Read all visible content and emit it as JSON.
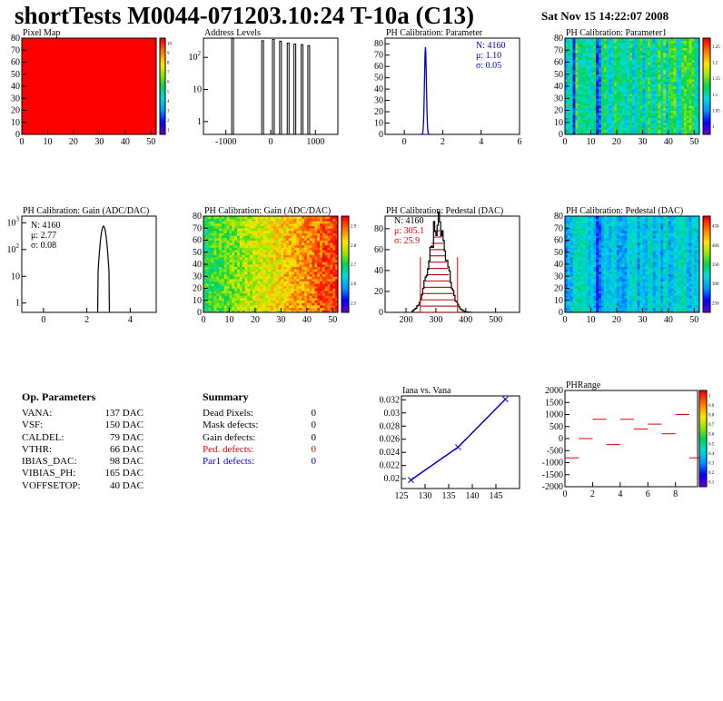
{
  "title": "shortTests M0044-071203.10:24 T-10a (C13)",
  "date": "Sat Nov 15 14:22:07 2008",
  "colors": {
    "hist": "#000000",
    "blue": "#0000cc",
    "red": "#dd0000",
    "pedfill": "#aa0000"
  },
  "chart_data": [
    {
      "type": "heatmap",
      "title": "Pixel Map",
      "x_ticks": [
        "0",
        "10",
        "20",
        "30",
        "40",
        "50"
      ],
      "y_ticks": [
        "0",
        "10",
        "20",
        "30",
        "40",
        "50",
        "60",
        "70",
        "80"
      ],
      "z_ticks": [
        "1",
        "2",
        "3",
        "4",
        "5",
        "6",
        "7",
        "8",
        "9",
        "10"
      ],
      "uniform_value": 10
    },
    {
      "type": "bar",
      "title": "Address Levels",
      "yscale": "log",
      "x_ticks": [
        "-1000",
        "0",
        "1000"
      ],
      "y_ticks": [
        "1",
        "10",
        "10^2"
      ],
      "peaks_x": [
        -850,
        -180,
        60,
        220,
        390,
        540,
        700,
        850
      ],
      "peaks_y": [
        400,
        330,
        360,
        320,
        280,
        260,
        250,
        230
      ]
    },
    {
      "type": "bar",
      "title": "PH Calibration: Parameter",
      "x_ticks": [
        "0",
        "2",
        "4",
        "6"
      ],
      "y_ticks": [
        "0",
        "10",
        "20",
        "30",
        "40",
        "50",
        "60",
        "70",
        "80"
      ],
      "stats": {
        "n": "N: 4160",
        "mu": "μ: 1.10",
        "sigma": "σ: 0.05"
      },
      "peak": {
        "x": 1.1,
        "y": 77
      }
    },
    {
      "type": "heatmap",
      "title": "PH Calibration: Parameter1",
      "x_ticks": [
        "0",
        "10",
        "20",
        "30",
        "40",
        "50"
      ],
      "y_ticks": [
        "0",
        "10",
        "20",
        "30",
        "40",
        "50",
        "60",
        "70",
        "80"
      ],
      "z_ticks": [
        "1",
        "1.05",
        "1.1",
        "1.15",
        "1.2",
        "1.25"
      ],
      "z_range": [
        0.95,
        1.3
      ]
    },
    {
      "type": "bar",
      "title": "PH Calibration: Gain (ADC/DAC)",
      "yscale": "log",
      "x_ticks": [
        "0",
        "2",
        "4"
      ],
      "y_ticks": [
        "1",
        "10",
        "10^2",
        "10^3"
      ],
      "stats": {
        "n": "N: 4160",
        "mu": "μ: 2.77",
        "sigma": "σ: 0.08"
      },
      "peak": {
        "x": 2.77,
        "y": 750
      }
    },
    {
      "type": "heatmap",
      "title": "PH Calibration: Gain (ADC/DAC)",
      "x_ticks": [
        "0",
        "10",
        "20",
        "30",
        "40",
        "50"
      ],
      "y_ticks": [
        "0",
        "10",
        "20",
        "30",
        "40",
        "50",
        "60",
        "70",
        "80"
      ],
      "z_ticks": [
        "2.5",
        "2.6",
        "2.7",
        "2.8",
        "2.9"
      ],
      "z_range": [
        2.45,
        3.0
      ]
    },
    {
      "type": "bar",
      "title": "PH Calibration: Pedestal (DAC)",
      "x_ticks": [
        "200",
        "300",
        "400",
        "500"
      ],
      "y_ticks": [
        "0",
        "20",
        "40",
        "60",
        "80"
      ],
      "stats": {
        "n": "N: 4160",
        "mu": "μ: 305.1",
        "sigma": "σ: 25.9"
      },
      "mean": 305.1,
      "sigma": 25.9,
      "peak_y": 85
    },
    {
      "type": "heatmap",
      "title": "PH Calibration: Pedestal (DAC)",
      "x_ticks": [
        "0",
        "10",
        "20",
        "30",
        "40",
        "50"
      ],
      "y_ticks": [
        "0",
        "10",
        "20",
        "30",
        "40",
        "50",
        "60",
        "70",
        "80"
      ],
      "z_ticks": [
        "250",
        "300",
        "350",
        "400",
        "450"
      ],
      "z_range": [
        220,
        480
      ]
    },
    {
      "type": "line",
      "title": "Iana vs. Vana",
      "x_ticks": [
        "125",
        "130",
        "135",
        "140",
        "145"
      ],
      "y_ticks": [
        "0.02",
        "0.022",
        "0.024",
        "0.026",
        "0.028",
        "0.03",
        "0.032"
      ],
      "x": [
        127,
        137,
        147
      ],
      "y": [
        0.0198,
        0.0248,
        0.0321
      ]
    },
    {
      "type": "scatter",
      "title": "PHRange",
      "x_ticks": [
        "0",
        "2",
        "4",
        "6",
        "8"
      ],
      "y_ticks": [
        "2000",
        "1500",
        "1000",
        "500",
        "0",
        "-500",
        "-1000",
        "-1500",
        "-2000"
      ],
      "z_ticks": [
        "0.1",
        "0.2",
        "0.3",
        "0.4",
        "0.5",
        "0.6",
        "0.7",
        "0.8",
        "0.9",
        "1"
      ],
      "x": [
        0,
        1,
        2,
        3,
        4,
        5,
        6,
        7,
        8,
        9
      ],
      "y": [
        -800,
        0,
        800,
        -250,
        800,
        400,
        600,
        200,
        1000,
        -800
      ]
    }
  ],
  "op_params": {
    "heading": "Op. Parameters",
    "rows": [
      {
        "k": "VANA:",
        "v": "137 DAC"
      },
      {
        "k": "VSF:",
        "v": "150 DAC"
      },
      {
        "k": "CALDEL:",
        "v": "79 DAC"
      },
      {
        "k": "VTHR:",
        "v": "66 DAC"
      },
      {
        "k": "IBIAS_DAC:",
        "v": "98 DAC"
      },
      {
        "k": "VIBIAS_PH:",
        "v": "165 DAC"
      },
      {
        "k": "VOFFSETOP:",
        "v": "40 DAC"
      }
    ]
  },
  "summary": {
    "heading": "Summary",
    "rows": [
      {
        "k": "Dead Pixels:",
        "v": "0",
        "c": "#000000"
      },
      {
        "k": "Mask defects:",
        "v": "0",
        "c": "#000000"
      },
      {
        "k": "Gain defects:",
        "v": "0",
        "c": "#000000"
      },
      {
        "k": "Ped. defects:",
        "v": "0",
        "c": "#dd0000"
      },
      {
        "k": "Par1 defects:",
        "v": "0",
        "c": "#0000cc"
      }
    ]
  }
}
